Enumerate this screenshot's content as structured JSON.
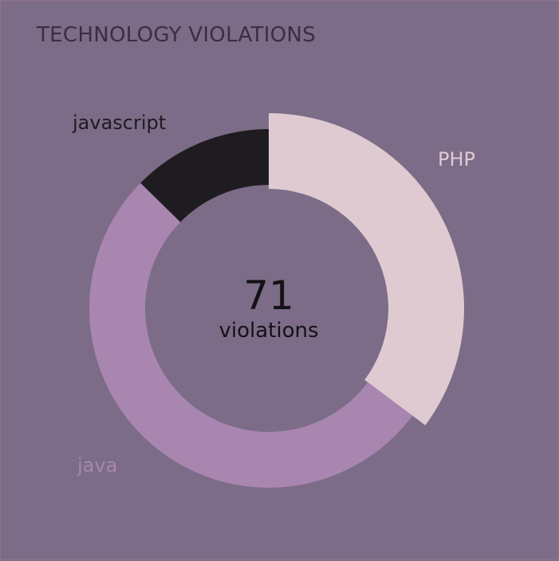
{
  "panel": {
    "title": "TECHNOLOGY VIOLATIONS"
  },
  "chart_data": {
    "type": "pie",
    "variant": "donut",
    "total": 71,
    "center_value": "71",
    "center_unit": "violations",
    "slices": [
      {
        "label": "PHP",
        "value": 25,
        "color": "#dfcad1",
        "label_color": "#dfcad1"
      },
      {
        "label": "java",
        "value": 37,
        "color": "#a986b0",
        "label_color": "#a986b0"
      },
      {
        "label": "javascript",
        "value": 9,
        "color": "#1f1c21",
        "label_color": "#1f1c21"
      }
    ],
    "start_angle_deg": 0,
    "direction": "clockwise"
  }
}
